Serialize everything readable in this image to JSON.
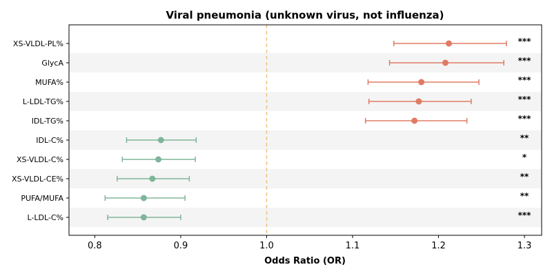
{
  "chart_data": {
    "type": "forest",
    "title": "Viral pneumonia (unknown virus, not influenza)",
    "xlabel": "Odds Ratio (OR)",
    "xlim": [
      0.77,
      1.32
    ],
    "xticks": [
      "0.8",
      "0.9",
      "1.0",
      "1.1",
      "1.2",
      "1.3"
    ],
    "reference_line": 1.0,
    "rows": [
      {
        "label": "XS-VLDL-PL%",
        "or": 1.212,
        "lo": 1.148,
        "hi": 1.279,
        "sig": "***"
      },
      {
        "label": "GlycA",
        "or": 1.208,
        "lo": 1.143,
        "hi": 1.276,
        "sig": "***"
      },
      {
        "label": "MUFA%",
        "or": 1.18,
        "lo": 1.118,
        "hi": 1.247,
        "sig": "***"
      },
      {
        "label": "L-LDL-TG%",
        "or": 1.177,
        "lo": 1.119,
        "hi": 1.238,
        "sig": "***"
      },
      {
        "label": "IDL-TG%",
        "or": 1.172,
        "lo": 1.115,
        "hi": 1.233,
        "sig": "***"
      },
      {
        "label": "IDL-C%",
        "or": 0.877,
        "lo": 0.837,
        "hi": 0.918,
        "sig": "**"
      },
      {
        "label": "XS-VLDL-C%",
        "or": 0.874,
        "lo": 0.832,
        "hi": 0.917,
        "sig": "*"
      },
      {
        "label": "XS-VLDL-CE%",
        "or": 0.867,
        "lo": 0.826,
        "hi": 0.91,
        "sig": "**"
      },
      {
        "label": "PUFA/MUFA",
        "or": 0.857,
        "lo": 0.812,
        "hi": 0.905,
        "sig": "**"
      },
      {
        "label": "L-LDL-C%",
        "or": 0.857,
        "lo": 0.815,
        "hi": 0.9,
        "sig": "***"
      }
    ],
    "colors": {
      "positive": "#e07b63",
      "negative": "#7fb59a",
      "reference": "#f0c27b",
      "band": "#f4f4f4"
    },
    "grid": false,
    "legend": "none"
  }
}
